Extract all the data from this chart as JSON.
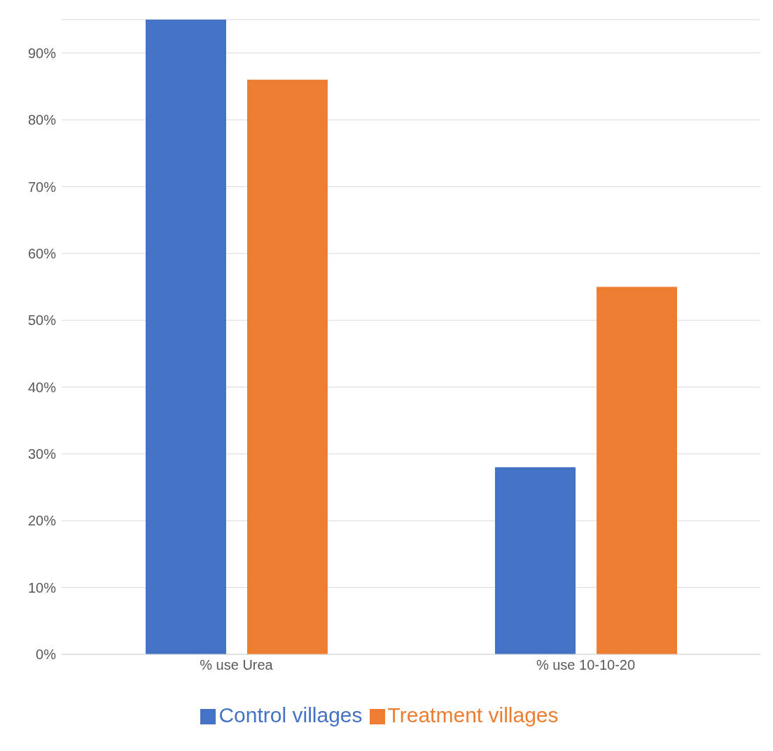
{
  "chart_data": {
    "type": "bar",
    "categories": [
      "% use Urea",
      "% use 10-10-20"
    ],
    "series": [
      {
        "name": "Control villages",
        "color": "#4472c4",
        "values": [
          95,
          28
        ]
      },
      {
        "name": "Treatment villages",
        "color": "#ed7d31",
        "values": [
          86,
          55
        ]
      }
    ],
    "ylim": [
      0,
      95
    ],
    "yticks": [
      {
        "value": 0,
        "label": "0%"
      },
      {
        "value": 10,
        "label": "10%"
      },
      {
        "value": 20,
        "label": "20%"
      },
      {
        "value": 30,
        "label": "30%"
      },
      {
        "value": 40,
        "label": "40%"
      },
      {
        "value": 50,
        "label": "50%"
      },
      {
        "value": 60,
        "label": "60%"
      },
      {
        "value": 70,
        "label": "70%"
      },
      {
        "value": 80,
        "label": "80%"
      },
      {
        "value": 90,
        "label": "90%"
      }
    ],
    "grid": "y",
    "legend": "bottom"
  }
}
